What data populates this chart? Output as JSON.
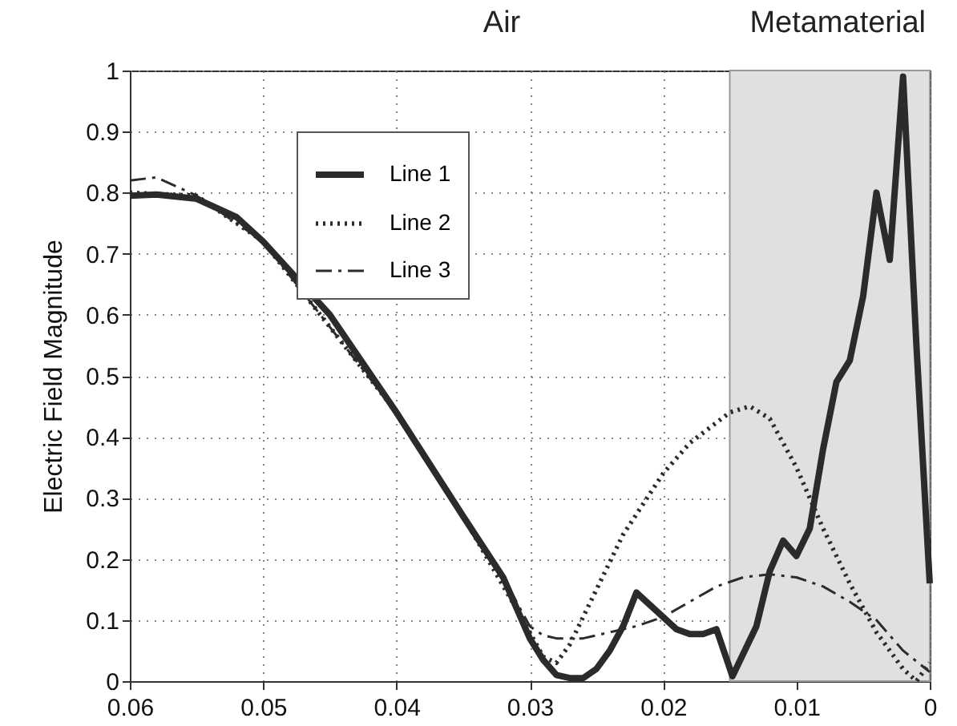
{
  "chart_data": {
    "type": "line",
    "ylabel": "Electric Field Magnitude",
    "annotations": [
      "Air",
      "Metamaterial"
    ],
    "xlim": [
      0.06,
      0
    ],
    "xticks": [
      0.06,
      0.05,
      0.04,
      0.03,
      0.02,
      0.01,
      0
    ],
    "ylim": [
      0,
      1
    ],
    "yticks": [
      0,
      0.1,
      0.2,
      0.3,
      0.4,
      0.5,
      0.6,
      0.7,
      0.8,
      0.9,
      1
    ],
    "grid": true,
    "legend": "top",
    "marker": "none",
    "bands": [
      {
        "axis": "x",
        "from": 0.015,
        "to": 0,
        "color": "#e0e0e0"
      }
    ],
    "series": [
      {
        "name": "Line 1",
        "color": "#2b2b2b",
        "line_style": "solid",
        "x": [
          0.06,
          0.058,
          0.055,
          0.052,
          0.05,
          0.045,
          0.04,
          0.035,
          0.032,
          0.03,
          0.029,
          0.028,
          0.027,
          0.026,
          0.025,
          0.024,
          0.023,
          0.022,
          0.021,
          0.02,
          0.019,
          0.018,
          0.017,
          0.016,
          0.0148,
          0.013,
          0.012,
          0.011,
          0.01,
          0.009,
          0.008,
          0.007,
          0.006,
          0.005,
          0.004,
          0.003,
          0.002,
          0.001,
          0
        ],
        "values": [
          0.795,
          0.797,
          0.79,
          0.76,
          0.72,
          0.6,
          0.44,
          0.27,
          0.17,
          0.07,
          0.035,
          0.01,
          0.005,
          0.005,
          0.02,
          0.05,
          0.09,
          0.145,
          0.125,
          0.105,
          0.085,
          0.077,
          0.077,
          0.085,
          0.008,
          0.09,
          0.18,
          0.23,
          0.205,
          0.25,
          0.38,
          0.49,
          0.525,
          0.63,
          0.8,
          0.69,
          0.99,
          0.55,
          0.16
        ]
      },
      {
        "name": "Line 2",
        "color": "#2b2b2b",
        "line_style": "dotted",
        "x": [
          0.06,
          0.055,
          0.05,
          0.04,
          0.035,
          0.03,
          0.029,
          0.028,
          0.027,
          0.025,
          0.023,
          0.02,
          0.018,
          0.015,
          0.0135,
          0.012,
          0.01,
          0.008,
          0.006,
          0.004,
          0.002,
          0.001,
          0
        ],
        "values": [
          0.8,
          0.795,
          0.72,
          0.44,
          0.27,
          0.08,
          0.04,
          0.03,
          0.06,
          0.15,
          0.24,
          0.34,
          0.39,
          0.44,
          0.45,
          0.43,
          0.35,
          0.25,
          0.16,
          0.08,
          0.02,
          0,
          0.03
        ]
      },
      {
        "name": "Line 3",
        "color": "#2b2b2b",
        "line_style": "dashed",
        "x": [
          0.06,
          0.058,
          0.055,
          0.05,
          0.04,
          0.035,
          0.032,
          0.03,
          0.029,
          0.028,
          0.026,
          0.024,
          0.022,
          0.02,
          0.018,
          0.016,
          0.014,
          0.012,
          0.01,
          0.008,
          0.006,
          0.004,
          0.002,
          0
        ],
        "values": [
          0.82,
          0.825,
          0.795,
          0.72,
          0.44,
          0.27,
          0.17,
          0.09,
          0.075,
          0.07,
          0.07,
          0.08,
          0.09,
          0.105,
          0.13,
          0.155,
          0.17,
          0.175,
          0.17,
          0.155,
          0.13,
          0.1,
          0.05,
          0.015
        ]
      }
    ]
  }
}
